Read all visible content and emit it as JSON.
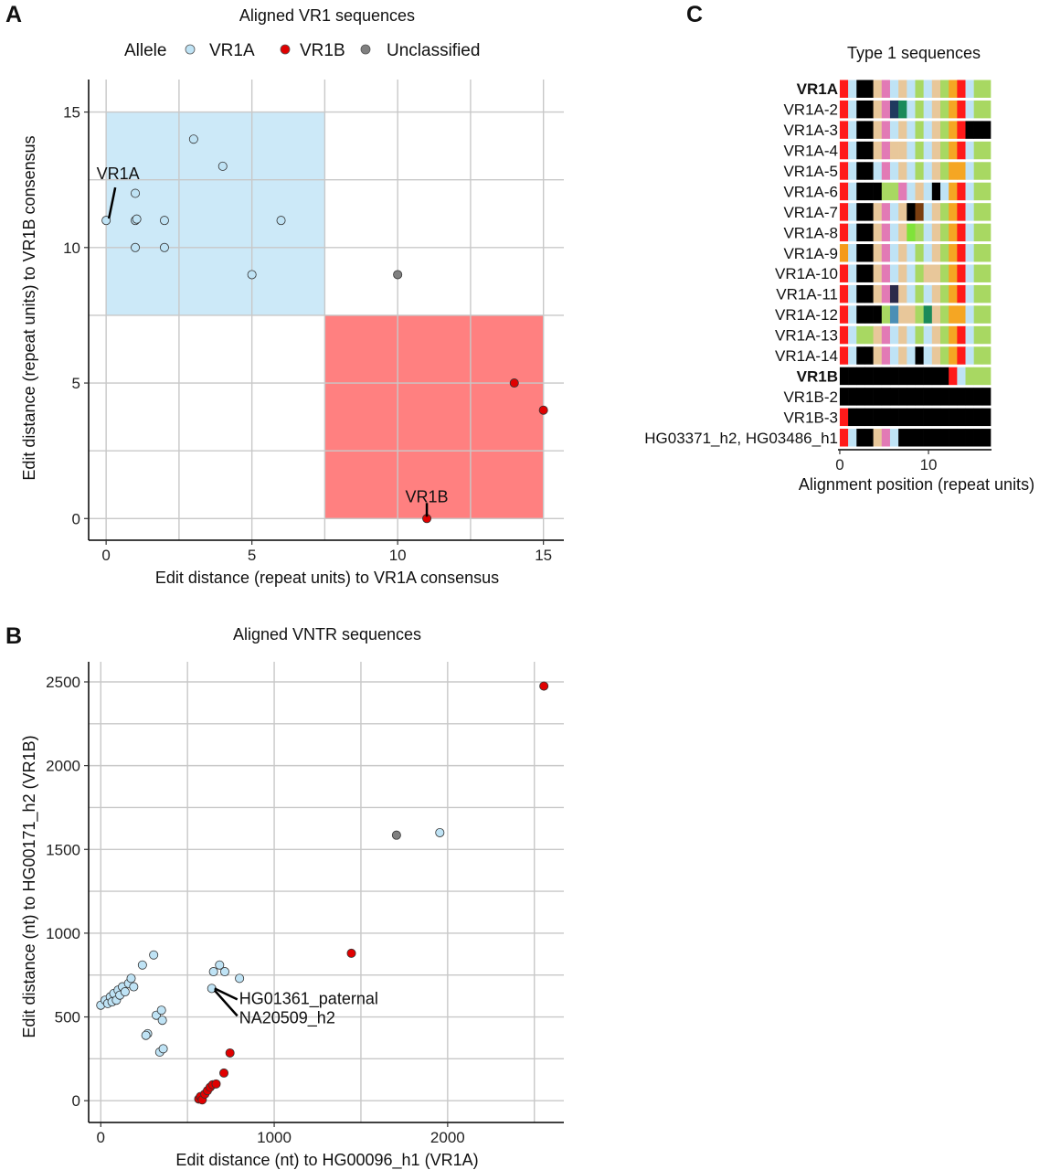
{
  "panels": {
    "A": {
      "letter": "A",
      "title": "Aligned VR1 sequences"
    },
    "B": {
      "letter": "B",
      "title": "Aligned VNTR sequences"
    },
    "C": {
      "letter": "C",
      "title": "Type 1 sequences"
    }
  },
  "legend": {
    "title": "Allele",
    "items": [
      {
        "label": "VR1A",
        "color": "#bfe3f5"
      },
      {
        "label": "VR1B",
        "color": "#e00000"
      },
      {
        "label": "Unclassified",
        "color": "#808080"
      }
    ]
  },
  "chart_data": [
    {
      "id": "A",
      "type": "scatter",
      "title": "Aligned VR1 sequences",
      "xlabel": "Edit distance (repeat units) to VR1A consensus",
      "ylabel": "Edit distance (repeat units) to VR1B consensus",
      "xlim": [
        -0.6,
        15.7
      ],
      "ylim": [
        -0.8,
        16.2
      ],
      "xticks": [
        0,
        5,
        10,
        15
      ],
      "yticks": [
        0,
        5,
        10,
        15
      ],
      "xgrid": [
        0,
        2.5,
        5,
        7.5,
        10,
        12.5,
        15
      ],
      "ygrid": [
        0,
        2.5,
        5,
        7.5,
        10,
        12.5,
        15
      ],
      "grid": true,
      "regions": [
        {
          "name": "VR1A",
          "x": [
            0,
            7.5
          ],
          "y": [
            7.5,
            15
          ],
          "color": "#cce9f8"
        },
        {
          "name": "VR1B",
          "x": [
            7.5,
            15
          ],
          "y": [
            0,
            7.5
          ],
          "color": "#ff8080"
        }
      ],
      "series": [
        {
          "name": "VR1A",
          "color": "#bfe3f5",
          "points": [
            [
              0,
              11
            ],
            [
              1,
              11
            ],
            [
              1.05,
              11.05
            ],
            [
              1,
              12
            ],
            [
              1,
              10
            ],
            [
              2,
              11
            ],
            [
              2,
              10
            ],
            [
              3,
              14
            ],
            [
              4,
              13
            ],
            [
              5,
              9
            ],
            [
              6,
              11
            ]
          ]
        },
        {
          "name": "VR1B",
          "color": "#e00000",
          "points": [
            [
              11,
              0
            ],
            [
              14,
              5
            ],
            [
              15,
              4
            ]
          ]
        },
        {
          "name": "Unclassified",
          "color": "#808080",
          "points": [
            [
              10,
              9
            ]
          ]
        }
      ],
      "annotations": [
        {
          "text": "VR1A",
          "x": 0,
          "y": 11
        },
        {
          "text": "VR1B",
          "x": 11,
          "y": 0
        }
      ]
    },
    {
      "id": "B",
      "type": "scatter",
      "title": "Aligned VNTR sequences",
      "xlabel": "Edit distance (nt) to HG00096_h1 (VR1A)",
      "ylabel": "Edit distance (nt) to HG00171_h2 (VR1B)",
      "xlim": [
        -70,
        2670
      ],
      "ylim": [
        -130,
        2620
      ],
      "xticks": [
        0,
        1000,
        2000
      ],
      "yticks": [
        0,
        500,
        1000,
        1500,
        2000,
        2500
      ],
      "xgrid": [
        0,
        500,
        1000,
        1500,
        2000,
        2500
      ],
      "ygrid": [
        0,
        250,
        500,
        750,
        1000,
        1250,
        1500,
        1750,
        2000,
        2250,
        2500
      ],
      "grid": true,
      "series": [
        {
          "name": "VR1A",
          "color": "#bfe3f5",
          "points": [
            [
              0,
              570
            ],
            [
              25,
              600
            ],
            [
              40,
              580
            ],
            [
              55,
              620
            ],
            [
              65,
              590
            ],
            [
              75,
              640
            ],
            [
              90,
              600
            ],
            [
              100,
              660
            ],
            [
              110,
              630
            ],
            [
              125,
              680
            ],
            [
              140,
              650
            ],
            [
              160,
              700
            ],
            [
              175,
              730
            ],
            [
              190,
              680
            ],
            [
              240,
              810
            ],
            [
              270,
              400
            ],
            [
              260,
              390
            ],
            [
              305,
              870
            ],
            [
              320,
              510
            ],
            [
              340,
              290
            ],
            [
              350,
              540
            ],
            [
              355,
              480
            ],
            [
              360,
              310
            ],
            [
              640,
              670
            ],
            [
              650,
              770
            ],
            [
              685,
              810
            ],
            [
              715,
              770
            ],
            [
              800,
              730
            ],
            [
              1955,
              1600
            ]
          ]
        },
        {
          "name": "VR1B",
          "color": "#e00000",
          "points": [
            [
              565,
              10
            ],
            [
              575,
              25
            ],
            [
              585,
              5
            ],
            [
              600,
              40
            ],
            [
              615,
              60
            ],
            [
              630,
              80
            ],
            [
              645,
              95
            ],
            [
              665,
              100
            ],
            [
              710,
              165
            ],
            [
              745,
              285
            ],
            [
              1445,
              880
            ],
            [
              2555,
              2475
            ]
          ]
        },
        {
          "name": "Unclassified",
          "color": "#808080",
          "points": [
            [
              1705,
              1585
            ]
          ]
        }
      ],
      "annotations": [
        {
          "text": "HG01361_paternal",
          "x": 640,
          "y": 670
        },
        {
          "text": "NA20509_h2",
          "x": 640,
          "y": 670
        }
      ]
    },
    {
      "id": "C",
      "type": "heatmap",
      "title": "Type 1 sequences",
      "xlabel": "Alignment position (repeat units)",
      "xlim": [
        -0.2,
        17.1
      ],
      "xticks": [
        0,
        10
      ],
      "rows": [
        {
          "label": "VR1A",
          "bold": true,
          "cells": [
            "#ff1a1a",
            "#bfe3f5",
            "#000000",
            "#000000",
            "#e8c79a",
            "#e27ab5",
            "#bfe3f5",
            "#e8c79a",
            "#bfe3f5",
            "#a8d862",
            "#bfe3f5",
            "#e8c79a",
            "#a8d862",
            "#f5a623",
            "#ff1a1a",
            "#bfe3f5",
            "#a8d862",
            "#a8d862"
          ]
        },
        {
          "label": "VR1A-2",
          "bold": false,
          "cells": [
            "#ff1a1a",
            "#bfe3f5",
            "#000000",
            "#000000",
            "#e8c79a",
            "#e27ab5",
            "#1f3a5f",
            "#1a8a5a",
            "#bfe3f5",
            "#a8d862",
            "#bfe3f5",
            "#e8c79a",
            "#a8d862",
            "#f5a623",
            "#ff1a1a",
            "#bfe3f5",
            "#a8d862",
            "#a8d862"
          ]
        },
        {
          "label": "VR1A-3",
          "bold": false,
          "cells": [
            "#ff1a1a",
            "#bfe3f5",
            "#000000",
            "#000000",
            "#e8c79a",
            "#e27ab5",
            "#bfe3f5",
            "#e8c79a",
            "#bfe3f5",
            "#a8d862",
            "#bfe3f5",
            "#e8c79a",
            "#a8d862",
            "#f5a623",
            "#ff1a1a",
            "#000000",
            "#000000",
            "#000000"
          ]
        },
        {
          "label": "VR1A-4",
          "bold": false,
          "cells": [
            "#ff1a1a",
            "#bfe3f5",
            "#000000",
            "#000000",
            "#e8c79a",
            "#e27ab5",
            "#e8c79a",
            "#e8c79a",
            "#bfe3f5",
            "#a8d862",
            "#bfe3f5",
            "#e8c79a",
            "#a8d862",
            "#f5a623",
            "#ff1a1a",
            "#bfe3f5",
            "#a8d862",
            "#a8d862"
          ]
        },
        {
          "label": "VR1A-5",
          "bold": false,
          "cells": [
            "#ff1a1a",
            "#bfe3f5",
            "#000000",
            "#000000",
            "#bfe3f5",
            "#e27ab5",
            "#bfe3f5",
            "#e8c79a",
            "#bfe3f5",
            "#a8d862",
            "#bfe3f5",
            "#e8c79a",
            "#a8d862",
            "#f5a623",
            "#f5a623",
            "#bfe3f5",
            "#a8d862",
            "#a8d862"
          ]
        },
        {
          "label": "VR1A-6",
          "bold": false,
          "cells": [
            "#ff1a1a",
            "#bfe3f5",
            "#000000",
            "#000000",
            "#000000",
            "#a8d862",
            "#a8d862",
            "#e27ab5",
            "#bfe3f5",
            "#e8c79a",
            "#bfe3f5",
            "#000000",
            "#bfe3f5",
            "#f5a623",
            "#ff1a1a",
            "#bfe3f5",
            "#a8d862",
            "#a8d862"
          ]
        },
        {
          "label": "VR1A-7",
          "bold": false,
          "cells": [
            "#ff1a1a",
            "#bfe3f5",
            "#000000",
            "#000000",
            "#e8c79a",
            "#e27ab5",
            "#bfe3f5",
            "#e8c79a",
            "#000000",
            "#7a3e10",
            "#bfe3f5",
            "#e8c79a",
            "#a8d862",
            "#f5a623",
            "#ff1a1a",
            "#bfe3f5",
            "#a8d862",
            "#a8d862"
          ]
        },
        {
          "label": "VR1A-8",
          "bold": false,
          "cells": [
            "#ff1a1a",
            "#bfe3f5",
            "#000000",
            "#000000",
            "#e8c79a",
            "#e27ab5",
            "#bfe3f5",
            "#e8c79a",
            "#7fe33a",
            "#a8d862",
            "#bfe3f5",
            "#e8c79a",
            "#a8d862",
            "#f5a623",
            "#ff1a1a",
            "#bfe3f5",
            "#a8d862",
            "#a8d862"
          ]
        },
        {
          "label": "VR1A-9",
          "bold": false,
          "cells": [
            "#f59a1a",
            "#bfe3f5",
            "#000000",
            "#000000",
            "#e8c79a",
            "#e27ab5",
            "#bfe3f5",
            "#e8c79a",
            "#bfe3f5",
            "#a8d862",
            "#bfe3f5",
            "#e8c79a",
            "#a8d862",
            "#f5a623",
            "#ff1a1a",
            "#bfe3f5",
            "#a8d862",
            "#a8d862"
          ]
        },
        {
          "label": "VR1A-10",
          "bold": false,
          "cells": [
            "#ff1a1a",
            "#bfe3f5",
            "#000000",
            "#000000",
            "#e8c79a",
            "#e27ab5",
            "#bfe3f5",
            "#e8c79a",
            "#bfe3f5",
            "#a8d862",
            "#e8c79a",
            "#e8c79a",
            "#a8d862",
            "#f5a623",
            "#ff1a1a",
            "#bfe3f5",
            "#a8d862",
            "#a8d862"
          ]
        },
        {
          "label": "VR1A-11",
          "bold": false,
          "cells": [
            "#ff1a1a",
            "#bfe3f5",
            "#000000",
            "#000000",
            "#e8c79a",
            "#e27ab5",
            "#2a2a4a",
            "#e8c79a",
            "#bfe3f5",
            "#a8d862",
            "#bfe3f5",
            "#e8c79a",
            "#a8d862",
            "#f5a623",
            "#ff1a1a",
            "#bfe3f5",
            "#a8d862",
            "#a8d862"
          ]
        },
        {
          "label": "VR1A-12",
          "bold": false,
          "cells": [
            "#ff1a1a",
            "#bfe3f5",
            "#000000",
            "#000000",
            "#000000",
            "#a8d862",
            "#4a8fb5",
            "#e8c79a",
            "#e8c79a",
            "#a8d862",
            "#1a8a5a",
            "#e8c79a",
            "#a8d862",
            "#f5a623",
            "#f5a623",
            "#bfe3f5",
            "#a8d862",
            "#a8d862"
          ]
        },
        {
          "label": "VR1A-13",
          "bold": false,
          "cells": [
            "#ff1a1a",
            "#bfe3f5",
            "#a8d862",
            "#a8d862",
            "#e8c79a",
            "#e27ab5",
            "#bfe3f5",
            "#e8c79a",
            "#bfe3f5",
            "#a8d862",
            "#bfe3f5",
            "#e8c79a",
            "#a8d862",
            "#f5a623",
            "#ff1a1a",
            "#bfe3f5",
            "#a8d862",
            "#a8d862"
          ]
        },
        {
          "label": "VR1A-14",
          "bold": false,
          "cells": [
            "#ff1a1a",
            "#bfe3f5",
            "#000000",
            "#000000",
            "#e8c79a",
            "#e27ab5",
            "#bfe3f5",
            "#e8c79a",
            "#bfe3f5",
            "#000000",
            "#bfe3f5",
            "#e8c79a",
            "#a8d862",
            "#f5a623",
            "#ff1a1a",
            "#bfe3f5",
            "#a8d862",
            "#a8d862"
          ]
        },
        {
          "label": "VR1B",
          "bold": true,
          "cells": [
            "#000000",
            "#000000",
            "#000000",
            "#000000",
            "#000000",
            "#000000",
            "#000000",
            "#000000",
            "#000000",
            "#000000",
            "#000000",
            "#000000",
            "#000000",
            "#ff1a1a",
            "#bfe3f5",
            "#a8d862",
            "#a8d862",
            "#a8d862"
          ]
        },
        {
          "label": "VR1B-2",
          "bold": false,
          "cells": [
            "#000000",
            "#000000",
            "#000000",
            "#000000",
            "#000000",
            "#000000",
            "#000000",
            "#000000",
            "#000000",
            "#000000",
            "#000000",
            "#000000",
            "#000000",
            "#000000",
            "#000000",
            "#000000",
            "#000000",
            "#000000"
          ]
        },
        {
          "label": "VR1B-3",
          "bold": false,
          "cells": [
            "#ff1a1a",
            "#000000",
            "#000000",
            "#000000",
            "#000000",
            "#000000",
            "#000000",
            "#000000",
            "#000000",
            "#000000",
            "#000000",
            "#000000",
            "#000000",
            "#000000",
            "#000000",
            "#000000",
            "#000000",
            "#000000"
          ]
        },
        {
          "label": "HG03371_h2, HG03486_h1",
          "bold": false,
          "cells": [
            "#ff1a1a",
            "#bfe3f5",
            "#000000",
            "#000000",
            "#e8c79a",
            "#e27ab5",
            "#bfe3f5",
            "#000000",
            "#000000",
            "#000000",
            "#000000",
            "#000000",
            "#000000",
            "#000000",
            "#000000",
            "#000000",
            "#000000",
            "#000000"
          ]
        }
      ]
    }
  ]
}
